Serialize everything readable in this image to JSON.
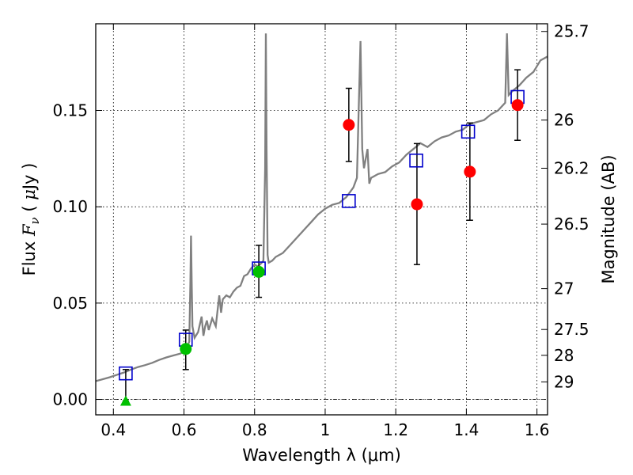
{
  "chart_data": {
    "type": "scatter",
    "title": "",
    "xlabel": "Wavelength  λ (μm)",
    "ylabel": "Flux  F_ν  ( μJy )",
    "ylabel_parts": {
      "pre": "Flux ",
      "var": "F",
      "sub": "ν",
      "mid": "  ( ",
      "mu": "μ",
      "post": "Jy )"
    },
    "ylabel_right": "Magnitude (AB)",
    "xlim": [
      0.35,
      1.63
    ],
    "ylim": [
      -0.008,
      0.195
    ],
    "xticks": [
      0.4,
      0.6,
      0.8,
      1.0,
      1.2,
      1.4,
      1.6
    ],
    "xtick_labels": [
      "0.4",
      "0.6",
      "0.8",
      "1",
      "1.2",
      "1.4",
      "1.6"
    ],
    "yticks": [
      0.0,
      0.05,
      0.1,
      0.15
    ],
    "ytick_labels": [
      "0.00",
      "0.05",
      "0.10",
      "0.15"
    ],
    "right_ticks": [
      {
        "label": "25.7",
        "flux": 0.191
      },
      {
        "label": "26",
        "flux": 0.145
      },
      {
        "label": "26.2",
        "flux": 0.12
      },
      {
        "label": "26.5",
        "flux": 0.091
      },
      {
        "label": "27",
        "flux": 0.0575
      },
      {
        "label": "27.5",
        "flux": 0.0363
      },
      {
        "label": "28",
        "flux": 0.0229
      },
      {
        "label": "29",
        "flux": 0.0091
      }
    ],
    "grid": true,
    "zero_line": true,
    "series": [
      {
        "kind": "line",
        "color": "#808080",
        "points": [
          [
            0.35,
            0.0095
          ],
          [
            0.37,
            0.0105
          ],
          [
            0.39,
            0.0115
          ],
          [
            0.41,
            0.0128
          ],
          [
            0.43,
            0.014
          ],
          [
            0.45,
            0.0155
          ],
          [
            0.47,
            0.0168
          ],
          [
            0.49,
            0.0178
          ],
          [
            0.51,
            0.019
          ],
          [
            0.53,
            0.0205
          ],
          [
            0.55,
            0.0218
          ],
          [
            0.57,
            0.0228
          ],
          [
            0.59,
            0.0238
          ],
          [
            0.605,
            0.0255
          ],
          [
            0.615,
            0.03
          ],
          [
            0.618,
            0.06
          ],
          [
            0.62,
            0.085
          ],
          [
            0.622,
            0.06
          ],
          [
            0.624,
            0.038
          ],
          [
            0.63,
            0.032
          ],
          [
            0.64,
            0.035
          ],
          [
            0.65,
            0.043
          ],
          [
            0.655,
            0.033
          ],
          [
            0.66,
            0.038
          ],
          [
            0.665,
            0.041
          ],
          [
            0.67,
            0.036
          ],
          [
            0.68,
            0.042
          ],
          [
            0.69,
            0.038
          ],
          [
            0.7,
            0.054
          ],
          [
            0.705,
            0.045
          ],
          [
            0.71,
            0.052
          ],
          [
            0.72,
            0.054
          ],
          [
            0.73,
            0.053
          ],
          [
            0.74,
            0.056
          ],
          [
            0.75,
            0.058
          ],
          [
            0.76,
            0.059
          ],
          [
            0.77,
            0.064
          ],
          [
            0.78,
            0.065
          ],
          [
            0.79,
            0.068
          ],
          [
            0.8,
            0.07
          ],
          [
            0.81,
            0.069
          ],
          [
            0.82,
            0.071
          ],
          [
            0.825,
            0.072
          ],
          [
            0.83,
            0.12
          ],
          [
            0.832,
            0.19
          ],
          [
            0.834,
            0.13
          ],
          [
            0.837,
            0.075
          ],
          [
            0.84,
            0.071
          ],
          [
            0.85,
            0.072
          ],
          [
            0.86,
            0.074
          ],
          [
            0.88,
            0.076
          ],
          [
            0.9,
            0.08
          ],
          [
            0.92,
            0.084
          ],
          [
            0.94,
            0.088
          ],
          [
            0.96,
            0.092
          ],
          [
            0.98,
            0.096
          ],
          [
            1.0,
            0.099
          ],
          [
            1.02,
            0.101
          ],
          [
            1.04,
            0.102
          ],
          [
            1.06,
            0.105
          ],
          [
            1.08,
            0.11
          ],
          [
            1.09,
            0.115
          ],
          [
            1.095,
            0.15
          ],
          [
            1.1,
            0.186
          ],
          [
            1.105,
            0.13
          ],
          [
            1.11,
            0.12
          ],
          [
            1.12,
            0.13
          ],
          [
            1.125,
            0.112
          ],
          [
            1.13,
            0.115
          ],
          [
            1.15,
            0.117
          ],
          [
            1.17,
            0.118
          ],
          [
            1.19,
            0.121
          ],
          [
            1.21,
            0.123
          ],
          [
            1.23,
            0.127
          ],
          [
            1.25,
            0.13
          ],
          [
            1.27,
            0.133
          ],
          [
            1.29,
            0.131
          ],
          [
            1.31,
            0.134
          ],
          [
            1.33,
            0.136
          ],
          [
            1.35,
            0.137
          ],
          [
            1.37,
            0.139
          ],
          [
            1.39,
            0.14
          ],
          [
            1.41,
            0.143
          ],
          [
            1.43,
            0.144
          ],
          [
            1.45,
            0.145
          ],
          [
            1.47,
            0.148
          ],
          [
            1.49,
            0.15
          ],
          [
            1.51,
            0.154
          ],
          [
            1.515,
            0.19
          ],
          [
            1.52,
            0.158
          ],
          [
            1.53,
            0.16
          ],
          [
            1.55,
            0.163
          ],
          [
            1.57,
            0.167
          ],
          [
            1.59,
            0.17
          ],
          [
            1.61,
            0.176
          ],
          [
            1.63,
            0.178
          ]
        ]
      },
      {
        "kind": "open-square",
        "color": "#0000cc",
        "points": [
          [
            0.435,
            0.0135
          ],
          [
            0.605,
            0.031
          ],
          [
            0.812,
            0.068
          ],
          [
            1.067,
            0.103
          ],
          [
            1.258,
            0.124
          ],
          [
            1.405,
            0.139
          ],
          [
            1.545,
            0.157
          ]
        ]
      },
      {
        "kind": "filled-circle",
        "color": "#ff0000",
        "points": [
          [
            1.067,
            0.1425
          ],
          [
            1.26,
            0.1013
          ],
          [
            1.41,
            0.1182
          ],
          [
            1.545,
            0.1528
          ]
        ],
        "errors": [
          [
            1.067,
            0.1235,
            0.1615
          ],
          [
            1.26,
            0.07,
            0.1328
          ],
          [
            1.41,
            0.093,
            0.1435
          ],
          [
            1.545,
            0.1345,
            0.1711
          ]
        ]
      },
      {
        "kind": "filled-circle",
        "color": "#00c000",
        "points": [
          [
            0.605,
            0.0262
          ],
          [
            0.812,
            0.0662
          ]
        ],
        "errors": [
          [
            0.605,
            0.0155,
            0.036
          ],
          [
            0.812,
            0.053,
            0.08
          ]
        ]
      },
      {
        "kind": "triangle",
        "color": "#00c000",
        "points": [
          [
            0.435,
            -0.0008
          ]
        ],
        "errors": [
          [
            0.435,
            -0.0008,
            0.0155
          ]
        ]
      }
    ]
  }
}
